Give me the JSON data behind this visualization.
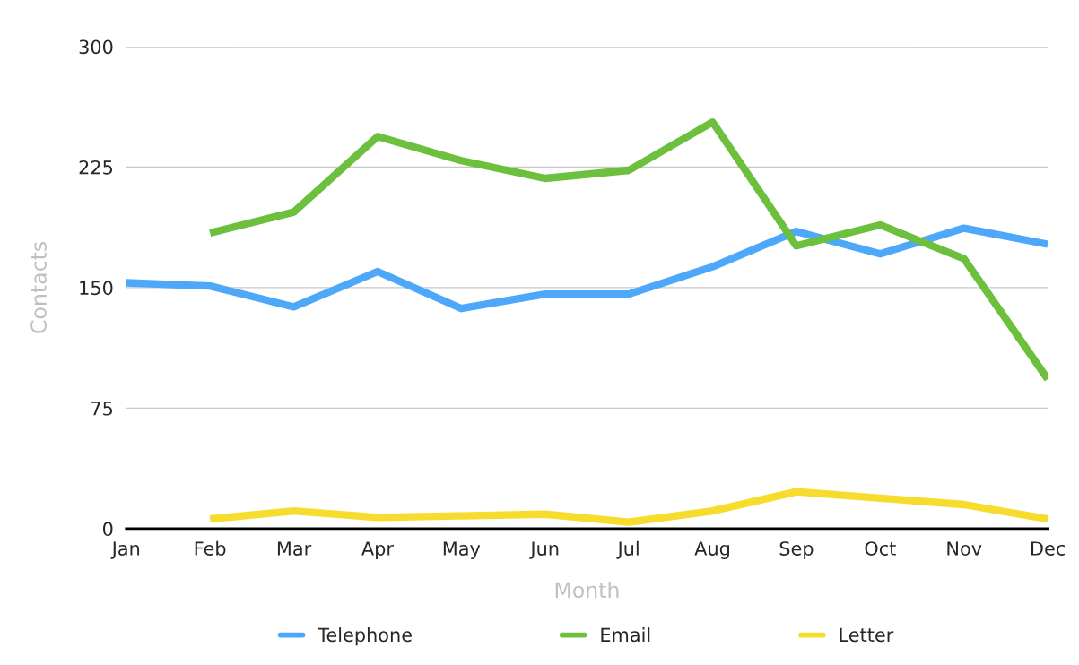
{
  "chart_data": {
    "type": "line",
    "xlabel": "Month",
    "ylabel": "Contacts",
    "categories": [
      "Jan",
      "Feb",
      "Mar",
      "Apr",
      "May",
      "Jun",
      "Jul",
      "Aug",
      "Sep",
      "Oct",
      "Nov",
      "Dec"
    ],
    "series": [
      {
        "name": "Telephone",
        "color": "#4da8fa",
        "values": [
          153,
          151,
          138,
          160,
          137,
          146,
          146,
          163,
          185,
          171,
          187,
          177
        ]
      },
      {
        "name": "Email",
        "color": "#6dbf3e",
        "values": [
          null,
          184,
          197,
          244,
          229,
          218,
          223,
          253,
          176,
          189,
          168,
          93
        ]
      },
      {
        "name": "Letter",
        "color": "#f6dc2c",
        "values": [
          null,
          6,
          11,
          7,
          8,
          9,
          4,
          11,
          23,
          19,
          15,
          6
        ]
      }
    ],
    "ylim": [
      0,
      300
    ],
    "yticks": [
      0,
      75,
      150,
      225,
      300
    ],
    "grid": "y",
    "legend": "bottom",
    "marker": "none",
    "line_style": "solid"
  }
}
